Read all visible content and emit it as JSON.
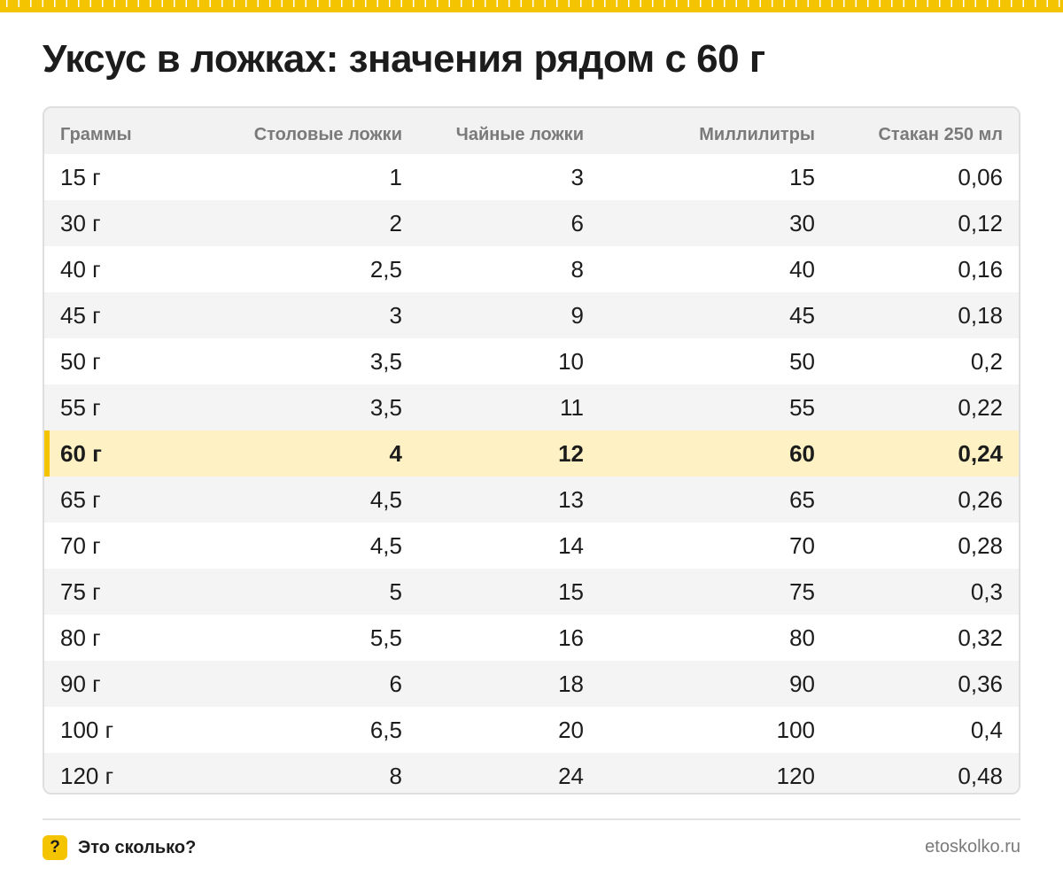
{
  "accent_color": "#f5c400",
  "highlight_color": "#fef2c4",
  "title": "Уксус в ложках: значения рядом с 60 г",
  "table": {
    "headers": [
      "Граммы",
      "Столовые ложки",
      "Чайные ложки",
      "Миллилитры",
      "Стакан 250 мл"
    ],
    "highlight_row": "60 г",
    "rows": [
      [
        "15 г",
        "1",
        "3",
        "15",
        "0,06"
      ],
      [
        "30 г",
        "2",
        "6",
        "30",
        "0,12"
      ],
      [
        "40 г",
        "2,5",
        "8",
        "40",
        "0,16"
      ],
      [
        "45 г",
        "3",
        "9",
        "45",
        "0,18"
      ],
      [
        "50 г",
        "3,5",
        "10",
        "50",
        "0,2"
      ],
      [
        "55 г",
        "3,5",
        "11",
        "55",
        "0,22"
      ],
      [
        "60 г",
        "4",
        "12",
        "60",
        "0,24"
      ],
      [
        "65 г",
        "4,5",
        "13",
        "65",
        "0,26"
      ],
      [
        "70 г",
        "4,5",
        "14",
        "70",
        "0,28"
      ],
      [
        "75 г",
        "5",
        "15",
        "75",
        "0,3"
      ],
      [
        "80 г",
        "5,5",
        "16",
        "80",
        "0,32"
      ],
      [
        "90 г",
        "6",
        "18",
        "90",
        "0,36"
      ],
      [
        "100 г",
        "6,5",
        "20",
        "100",
        "0,4"
      ],
      [
        "120 г",
        "8",
        "24",
        "120",
        "0,48"
      ]
    ]
  },
  "footer": {
    "badge": "?",
    "brand": "Это сколько?",
    "site": "etoskolko.ru"
  }
}
